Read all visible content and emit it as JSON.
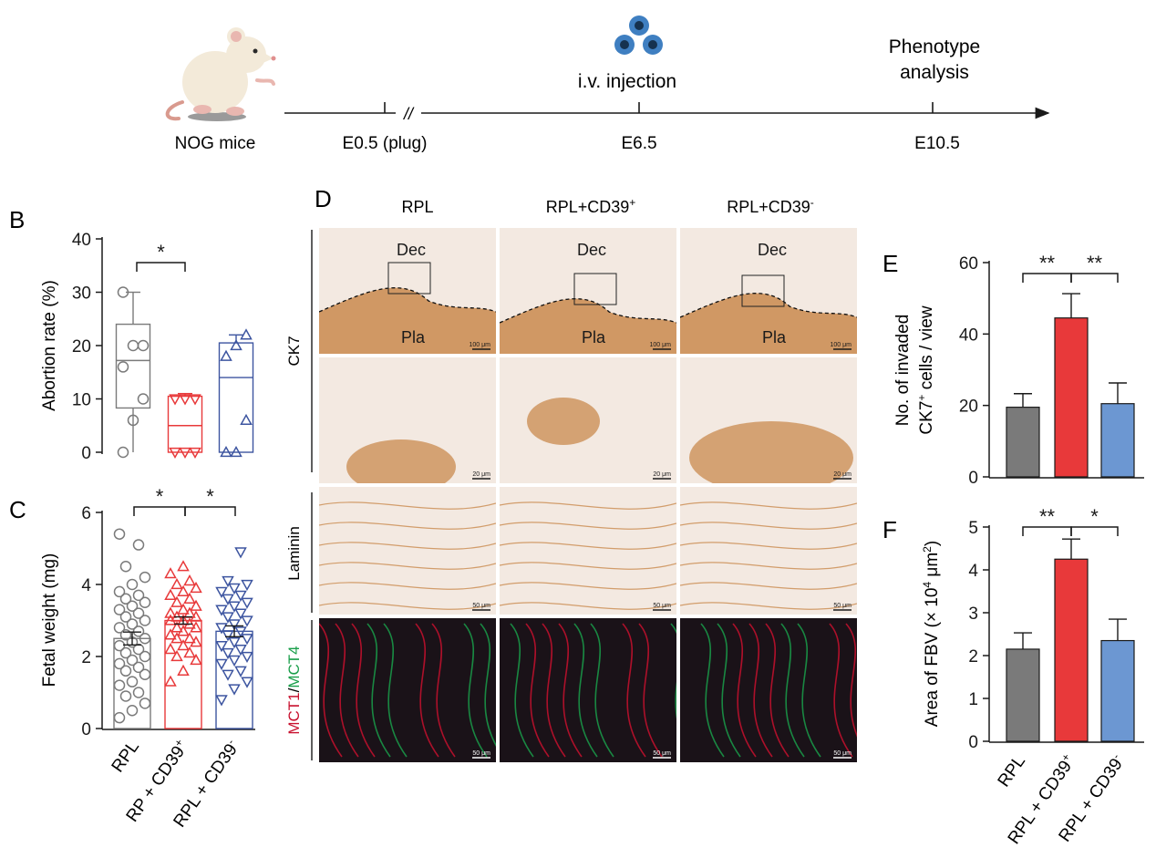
{
  "colors": {
    "rpl": "#7a7a7a",
    "cd39pos": "#e8393a",
    "cd39neg": "#3d55a0",
    "cd39neg_bar": "#6c97d2",
    "mct1": "#c8102e",
    "mct4": "#1a9e4a",
    "ihc_light": "#f3e9e1",
    "ihc_dark": "#c98a4e",
    "fluor_bg": "#1a1218"
  },
  "timeline": {
    "mouse_label": "NOG mice",
    "events": [
      {
        "label": "E0.5 (plug)",
        "day": 0.5,
        "top_label": ""
      },
      {
        "label": "E6.5",
        "day": 6.5,
        "top_label": "i.v. injection"
      },
      {
        "label": "E10.5",
        "day": 10.5,
        "top_label_lines": [
          "Phenotype",
          "analysis"
        ]
      }
    ],
    "break_mark": "//"
  },
  "panel_labels": {
    "b": "B",
    "c": "C",
    "d": "D",
    "e": "E",
    "f": "F"
  },
  "histology": {
    "columns": [
      "RPL",
      "RPL+CD39",
      "RPL+CD39"
    ],
    "column_superscripts": [
      "",
      "+",
      "-"
    ],
    "row_labels": {
      "ck7": "CK7",
      "laminin": "Laminin",
      "mct1": "MCT1",
      "slash": "/",
      "mct4": "MCT4"
    },
    "region_labels": {
      "dec": "Dec",
      "pla": "Pla"
    },
    "scale_bars": {
      "row1": "100 μm",
      "row2": "20 μm",
      "row3": "50 μm",
      "row4": "50 μm"
    }
  },
  "chart_data": [
    {
      "panel": "B",
      "type": "box",
      "ylabel": "Abortion rate (%)",
      "ylim": [
        0,
        40
      ],
      "yticks": [
        0,
        10,
        20,
        30,
        40
      ],
      "categories": [
        "RPL",
        "RPL + CD39+",
        "RPL + CD39-"
      ],
      "series": [
        {
          "min": 0,
          "q1": 8.3,
          "median": 17.2,
          "q3": 24,
          "max": 30,
          "points": [
            0,
            6,
            10,
            16,
            20,
            20,
            30
          ]
        },
        {
          "min": 0,
          "q1": 0,
          "median": 5,
          "q3": 10.5,
          "max": 11,
          "points": [
            0,
            0,
            0,
            10,
            10,
            10
          ]
        },
        {
          "min": 0,
          "q1": 0,
          "median": 14,
          "q3": 20.5,
          "max": 22,
          "points": [
            0,
            0,
            6,
            18,
            20,
            22
          ]
        }
      ],
      "significance": [
        {
          "from": 0,
          "to": 1,
          "label": "*"
        }
      ]
    },
    {
      "panel": "C",
      "type": "bar_scatter",
      "ylabel": "Fetal weight (mg)",
      "ylim": [
        0,
        6
      ],
      "yticks": [
        0,
        2,
        4,
        6
      ],
      "categories": [
        "RPL",
        "RP + CD39",
        "RPL + CD39"
      ],
      "category_superscripts": [
        "",
        "+",
        "-"
      ],
      "series": [
        {
          "mean": 2.5,
          "sem": 0.18,
          "points": [
            0.3,
            0.5,
            0.7,
            0.9,
            1.0,
            1.2,
            1.3,
            1.5,
            1.6,
            1.7,
            1.8,
            1.9,
            2.0,
            2.1,
            2.2,
            2.3,
            2.4,
            2.5,
            2.6,
            2.7,
            2.8,
            2.9,
            3.0,
            3.1,
            3.2,
            3.3,
            3.4,
            3.5,
            3.6,
            3.7,
            3.8,
            4.0,
            4.2,
            4.5,
            5.1,
            5.4
          ]
        },
        {
          "mean": 3.0,
          "sem": 0.1,
          "points": [
            1.3,
            1.6,
            1.9,
            2.0,
            2.1,
            2.2,
            2.3,
            2.4,
            2.5,
            2.5,
            2.6,
            2.7,
            2.8,
            2.8,
            2.9,
            3.0,
            3.0,
            3.1,
            3.1,
            3.2,
            3.2,
            3.3,
            3.4,
            3.5,
            3.6,
            3.7,
            3.8,
            3.9,
            4.0,
            4.1,
            4.3,
            4.5
          ]
        },
        {
          "mean": 2.7,
          "sem": 0.15,
          "points": [
            0.8,
            1.1,
            1.3,
            1.5,
            1.6,
            1.8,
            1.9,
            2.0,
            2.1,
            2.2,
            2.3,
            2.4,
            2.5,
            2.6,
            2.7,
            2.8,
            2.9,
            3.0,
            3.1,
            3.2,
            3.3,
            3.4,
            3.5,
            3.6,
            3.7,
            3.8,
            3.9,
            4.0,
            4.1,
            4.9
          ]
        }
      ],
      "significance": [
        {
          "from": 0,
          "to": 1,
          "label": "*"
        },
        {
          "from": 1,
          "to": 2,
          "label": "*"
        }
      ]
    },
    {
      "panel": "E",
      "type": "bar",
      "ylabel_lines": [
        "No. of invaded",
        "CK7",
        "+",
        " cells / view"
      ],
      "ylim": [
        0,
        60
      ],
      "yticks": [
        0,
        20,
        40,
        60
      ],
      "categories": [
        "RPL",
        "RPL + CD39+",
        "RPL + CD39-"
      ],
      "values": [
        19.5,
        44.5,
        20.5
      ],
      "errors": [
        3.8,
        6.8,
        5.8
      ],
      "significance": [
        {
          "from": 0,
          "to": 1,
          "label": "**"
        },
        {
          "from": 1,
          "to": 2,
          "label": "**"
        }
      ]
    },
    {
      "panel": "F",
      "type": "bar",
      "ylabel_parts": [
        "Area of FBV (× 10",
        "4",
        " μm",
        "2",
        ")"
      ],
      "ylim": [
        0,
        5
      ],
      "yticks": [
        0,
        1,
        2,
        3,
        4,
        5
      ],
      "categories": [
        "RPL",
        "RPL + CD39",
        "RPL + CD39"
      ],
      "category_superscripts": [
        "",
        "+",
        "-"
      ],
      "values": [
        2.15,
        4.25,
        2.35
      ],
      "errors": [
        0.38,
        0.47,
        0.5
      ],
      "significance": [
        {
          "from": 0,
          "to": 1,
          "label": "**"
        },
        {
          "from": 1,
          "to": 2,
          "label": "*"
        }
      ]
    }
  ]
}
